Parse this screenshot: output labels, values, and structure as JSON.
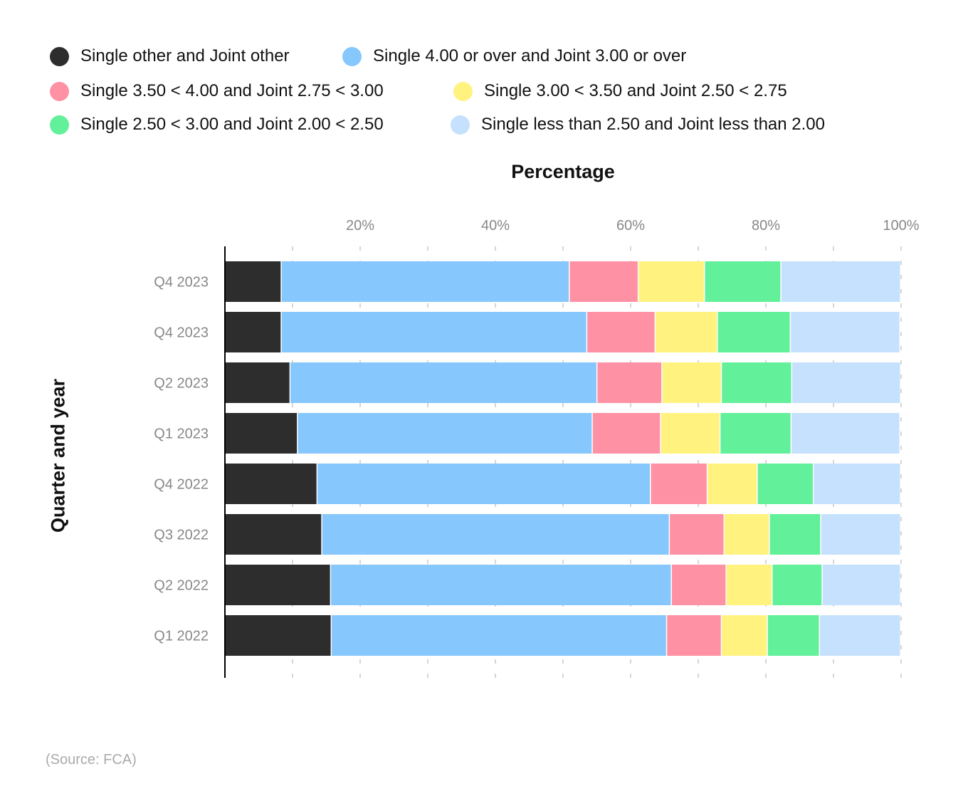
{
  "chart_data": {
    "type": "bar",
    "orientation": "horizontal",
    "stacked": true,
    "xlabel": "Percentage",
    "ylabel": "Quarter and year",
    "xlim": [
      0,
      100
    ],
    "xticks": [
      20,
      40,
      60,
      80,
      100
    ],
    "xtick_labels": [
      "20%",
      "40%",
      "60%",
      "80%",
      "100%"
    ],
    "grid": "vertical dashed every 10%",
    "legend_placement": "top",
    "categories": [
      "Q4 2023",
      "Q4 2023",
      "Q2 2023",
      "Q1 2023",
      "Q4 2022",
      "Q3 2022",
      "Q2 2022",
      "Q1 2022"
    ],
    "series": [
      {
        "name": "Single other and Joint other",
        "color": "#2d2d2d",
        "values": [
          8.4,
          8.4,
          9.7,
          10.8,
          13.7,
          14.4,
          15.7,
          15.8
        ]
      },
      {
        "name": "Single 4.00 or over and Joint 3.00 or over",
        "color": "#86c7fd",
        "values": [
          42.6,
          45.2,
          45.4,
          43.6,
          49.3,
          51.4,
          50.4,
          49.6
        ]
      },
      {
        "name": "Single 3.50 < 4.00 and Joint 2.75 < 3.00",
        "color": "#ff91a4",
        "values": [
          10.2,
          10.1,
          9.6,
          10.1,
          8.4,
          8.1,
          8.1,
          8.1
        ]
      },
      {
        "name": "Single 3.00 < 3.50 and Joint 2.50 < 2.75",
        "color": "#fff27f",
        "values": [
          9.8,
          9.2,
          8.8,
          8.8,
          7.4,
          6.7,
          6.8,
          6.8
        ]
      },
      {
        "name": "Single 2.50 < 3.00 and Joint 2.00 < 2.50",
        "color": "#62f09a",
        "values": [
          11.3,
          10.8,
          10.4,
          10.5,
          8.3,
          7.6,
          7.4,
          7.7
        ]
      },
      {
        "name": "Single less than 2.50 and Joint less than 2.00",
        "color": "#c5e1fd",
        "values": [
          17.7,
          16.2,
          16.1,
          16.1,
          12.9,
          11.8,
          11.6,
          12.0
        ]
      }
    ]
  },
  "source": "(Source: FCA)"
}
